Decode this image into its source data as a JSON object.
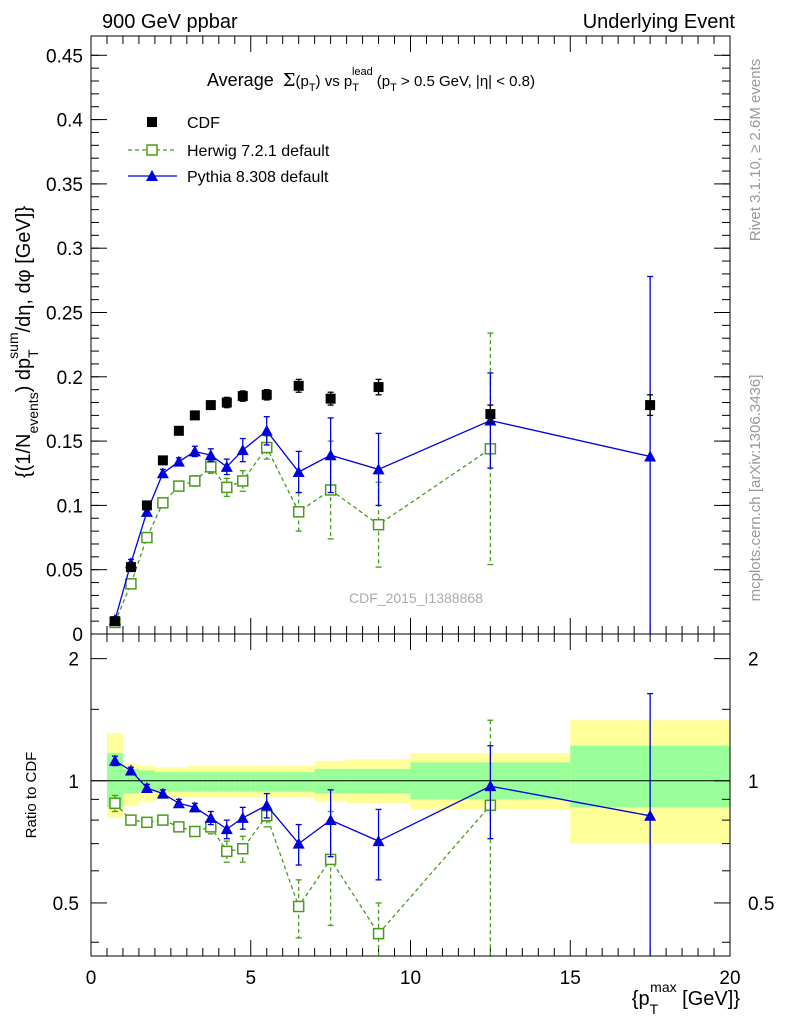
{
  "header": {
    "left": "900 GeV ppbar",
    "right": "Underlying Event"
  },
  "side_labels": {
    "rivet": "Rivet 3.1.10, ≥ 2.6M events",
    "mcplots": "mcplots.cern.ch [arXiv:1306.3436]"
  },
  "chart_data": [
    {
      "type": "line",
      "title": "Average Σ(pT) vs pT lead (pT > 0.5 GeV, |η| < 0.8)",
      "title_parts": {
        "average": "Average",
        "sigma": "Σ",
        "p_open": "(p",
        "sub_T": "T",
        "vs": ") vs p",
        "sup_lead": "lead",
        "cut_p": "(p",
        "cut_rest": " > 0.5 GeV, |η| < 0.8)"
      },
      "ylabel": "{(1/N_events) dp_T^sum/dη, dφ [GeV]}",
      "ylabel_parts": {
        "a": "{(1/N",
        "sub_events": "events",
        "b": ") dp",
        "sub_T": "T",
        "sup_sum": "sum",
        "c": "/dη, dφ [GeV]}"
      },
      "watermark": "CDF_2015_I1388868",
      "xlim": [
        0,
        20
      ],
      "ylim": [
        0,
        0.465
      ],
      "yticks": [
        0,
        0.05,
        0.1,
        0.15,
        0.2,
        0.25,
        0.3,
        0.35,
        0.4,
        0.45
      ],
      "ytick_labels": [
        "0",
        "0.05",
        "0.1",
        "0.15",
        "0.2",
        "0.25",
        "0.3",
        "0.35",
        "0.4",
        "0.45"
      ],
      "legend_placement": "top-left",
      "series": [
        {
          "name": "CDF",
          "color": "#000000",
          "marker": "filled-square",
          "x": [
            0.75,
            1.25,
            1.75,
            2.25,
            2.75,
            3.25,
            3.75,
            4.25,
            4.75,
            5.5,
            6.5,
            7.5,
            9.0,
            12.5,
            17.5
          ],
          "y": [
            0.01,
            0.052,
            0.1,
            0.135,
            0.158,
            0.17,
            0.178,
            0.18,
            0.185,
            0.186,
            0.193,
            0.183,
            0.192,
            0.171,
            0.178
          ],
          "err": [
            0.002,
            0.003,
            0.003,
            0.003,
            0.003,
            0.003,
            0.003,
            0.004,
            0.004,
            0.004,
            0.005,
            0.005,
            0.006,
            0.007,
            0.008
          ]
        },
        {
          "name": "Herwig 7.2.1 default",
          "color": "#4a9a1e",
          "marker": "open-square",
          "line": "dashed",
          "x": [
            0.75,
            1.25,
            1.75,
            2.25,
            2.75,
            3.25,
            3.75,
            4.25,
            4.75,
            5.5,
            6.5,
            7.5,
            9.0,
            12.5
          ],
          "y": [
            0.009,
            0.039,
            0.075,
            0.102,
            0.115,
            0.119,
            0.13,
            0.114,
            0.119,
            0.145,
            0.095,
            0.112,
            0.085,
            0.144
          ],
          "err": [
            0.002,
            0.003,
            0.003,
            0.003,
            0.003,
            0.004,
            0.005,
            0.007,
            0.008,
            0.009,
            0.015,
            0.038,
            0.033,
            0.09
          ]
        },
        {
          "name": "Pythia 8.308 default",
          "color": "#0000dd",
          "marker": "filled-triangle",
          "line": "solid",
          "x": [
            0.75,
            1.25,
            1.75,
            2.25,
            2.75,
            3.25,
            3.75,
            4.25,
            4.75,
            5.5,
            6.5,
            7.5,
            9.0,
            12.5,
            17.5
          ],
          "y": [
            0.011,
            0.055,
            0.095,
            0.125,
            0.134,
            0.142,
            0.139,
            0.13,
            0.143,
            0.158,
            0.126,
            0.139,
            0.128,
            0.166,
            0.138
          ],
          "err": [
            0.002,
            0.003,
            0.003,
            0.003,
            0.003,
            0.004,
            0.005,
            0.006,
            0.009,
            0.011,
            0.016,
            0.029,
            0.028,
            0.037,
            0.14
          ]
        }
      ]
    },
    {
      "type": "line",
      "ylabel": "Ratio to CDF",
      "xlabel": "{p_T^max [GeV]}",
      "xlabel_parts": {
        "a": "{p",
        "sub_T": "T",
        "sup_max": "max",
        "b": " [GeV]}"
      },
      "xlim": [
        0,
        20
      ],
      "ylim": [
        0.37,
        2.3
      ],
      "log_y": true,
      "xticks": [
        0,
        5,
        10,
        15,
        20
      ],
      "xtick_labels": [
        "0",
        "5",
        "10",
        "15",
        "20"
      ],
      "yticks": [
        0.5,
        1,
        2
      ],
      "ytick_labels": [
        "0.5",
        "1",
        "2"
      ],
      "bands": [
        {
          "x0": 0.5,
          "x1": 1.0,
          "yellow": [
            0.81,
            1.31
          ],
          "green": [
            0.86,
            1.17
          ]
        },
        {
          "x0": 1.0,
          "x1": 1.5,
          "yellow": [
            0.87,
            1.1
          ],
          "green": [
            0.93,
            1.07
          ]
        },
        {
          "x0": 1.5,
          "x1": 2.0,
          "yellow": [
            0.89,
            1.09
          ],
          "green": [
            0.94,
            1.06
          ]
        },
        {
          "x0": 2.0,
          "x1": 2.5,
          "yellow": [
            0.9,
            1.08
          ],
          "green": [
            0.94,
            1.05
          ]
        },
        {
          "x0": 2.5,
          "x1": 3.0,
          "yellow": [
            0.91,
            1.08
          ],
          "green": [
            0.94,
            1.05
          ]
        },
        {
          "x0": 3.0,
          "x1": 3.5,
          "yellow": [
            0.91,
            1.09
          ],
          "green": [
            0.94,
            1.05
          ]
        },
        {
          "x0": 3.5,
          "x1": 4.0,
          "yellow": [
            0.91,
            1.09
          ],
          "green": [
            0.94,
            1.05
          ]
        },
        {
          "x0": 4.0,
          "x1": 4.5,
          "yellow": [
            0.91,
            1.09
          ],
          "green": [
            0.94,
            1.05
          ]
        },
        {
          "x0": 4.5,
          "x1": 5.0,
          "yellow": [
            0.91,
            1.09
          ],
          "green": [
            0.94,
            1.05
          ]
        },
        {
          "x0": 5.0,
          "x1": 6.0,
          "yellow": [
            0.91,
            1.09
          ],
          "green": [
            0.94,
            1.05
          ]
        },
        {
          "x0": 6.0,
          "x1": 7.0,
          "yellow": [
            0.91,
            1.09
          ],
          "green": [
            0.94,
            1.05
          ]
        },
        {
          "x0": 7.0,
          "x1": 8.0,
          "yellow": [
            0.89,
            1.12
          ],
          "green": [
            0.93,
            1.07
          ]
        },
        {
          "x0": 8.0,
          "x1": 10.0,
          "yellow": [
            0.88,
            1.13
          ],
          "green": [
            0.93,
            1.07
          ]
        },
        {
          "x0": 10.0,
          "x1": 15.0,
          "yellow": [
            0.85,
            1.17
          ],
          "green": [
            0.9,
            1.11
          ]
        },
        {
          "x0": 15.0,
          "x1": 20.0,
          "yellow": [
            0.7,
            1.41
          ],
          "green": [
            0.86,
            1.22
          ]
        }
      ],
      "series": [
        {
          "name": "Herwig 7.2.1 default",
          "color": "#4a9a1e",
          "marker": "open-square",
          "line": "dashed",
          "x": [
            0.75,
            1.25,
            1.75,
            2.25,
            2.75,
            3.25,
            3.75,
            4.25,
            4.75,
            5.5,
            6.5,
            7.5,
            9.0,
            12.5
          ],
          "y": [
            0.88,
            0.8,
            0.79,
            0.8,
            0.77,
            0.75,
            0.77,
            0.67,
            0.68,
            0.82,
            0.49,
            0.64,
            0.42,
            0.87
          ],
          "err": [
            0.04,
            0.02,
            0.02,
            0.02,
            0.02,
            0.02,
            0.03,
            0.04,
            0.05,
            0.05,
            0.08,
            0.2,
            0.08,
            0.54
          ]
        },
        {
          "name": "Pythia 8.308 default",
          "color": "#0000dd",
          "marker": "filled-triangle",
          "line": "solid",
          "x": [
            0.75,
            1.25,
            1.75,
            2.25,
            2.75,
            3.25,
            3.75,
            4.25,
            4.75,
            5.5,
            6.5,
            7.5,
            9.0,
            12.5,
            17.5
          ],
          "y": [
            1.12,
            1.06,
            0.96,
            0.93,
            0.88,
            0.86,
            0.81,
            0.76,
            0.81,
            0.87,
            0.7,
            0.8,
            0.71,
            0.97,
            0.82
          ],
          "err": [
            0.03,
            0.02,
            0.02,
            0.02,
            0.02,
            0.02,
            0.03,
            0.04,
            0.05,
            0.06,
            0.08,
            0.15,
            0.14,
            0.25,
            0.82
          ]
        }
      ]
    }
  ]
}
